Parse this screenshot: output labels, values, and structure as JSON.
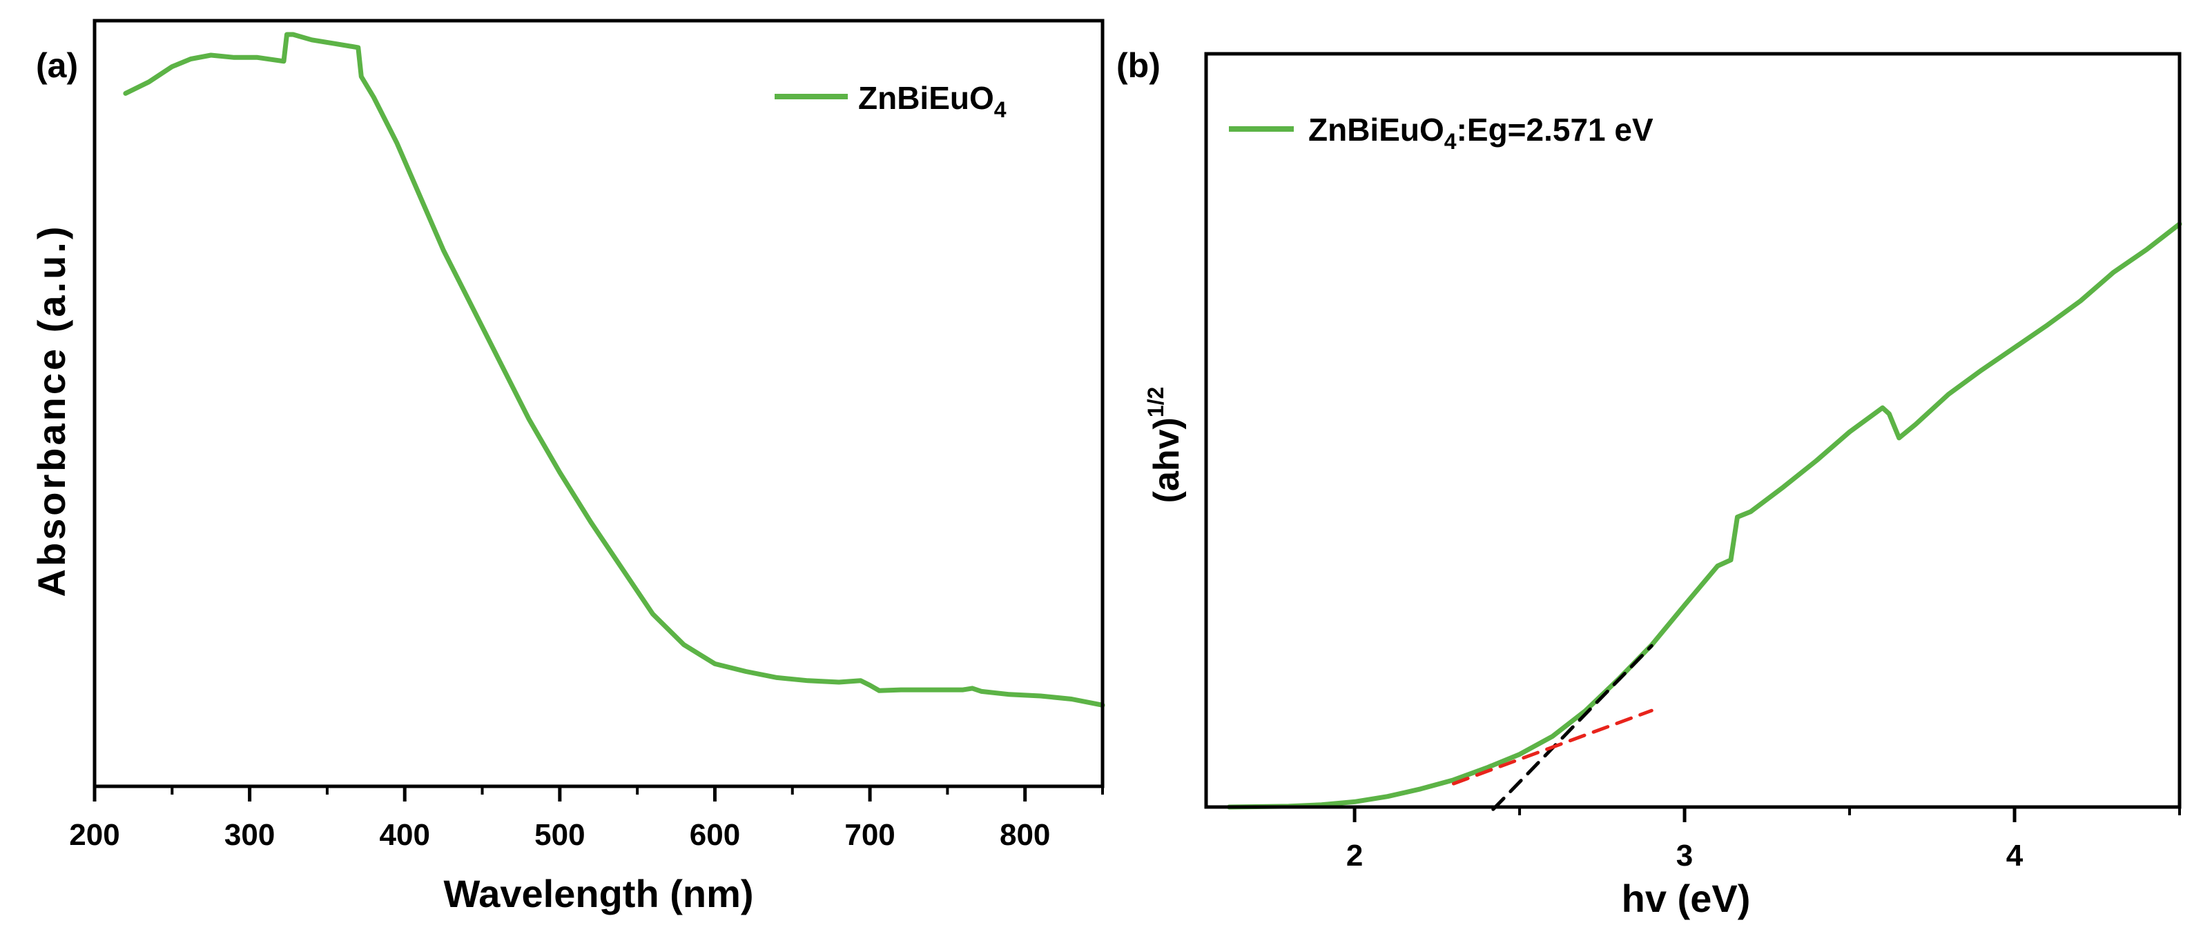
{
  "chart_data": [
    {
      "type": "line",
      "panel_label": "(a)",
      "title": "",
      "xlabel": "Wavelength (nm)",
      "ylabel": "Absorbance (a.u.)",
      "xlim": [
        200,
        850
      ],
      "ylim": [
        0,
        1
      ],
      "xticks": [
        200,
        300,
        400,
        500,
        600,
        700,
        800
      ],
      "xtick_labels": [
        "200",
        "300",
        "400",
        "500",
        "600",
        "700",
        "800"
      ],
      "yticks_shown": false,
      "legend": {
        "position": "top-right",
        "entries": [
          {
            "base": "ZnBiEuO",
            "sub": "4"
          }
        ]
      },
      "series": [
        {
          "name": "ZnBiEuO4",
          "color": "#5cb346",
          "x": [
            220,
            235,
            250,
            262,
            275,
            290,
            305,
            322,
            324,
            328,
            340,
            355,
            370,
            372,
            380,
            395,
            410,
            425,
            440,
            460,
            480,
            500,
            520,
            540,
            560,
            580,
            600,
            620,
            640,
            660,
            680,
            694,
            700,
            706,
            720,
            740,
            760,
            766,
            772,
            790,
            810,
            830,
            850
          ],
          "y": [
            0.905,
            0.92,
            0.94,
            0.95,
            0.955,
            0.952,
            0.952,
            0.947,
            0.982,
            0.982,
            0.975,
            0.97,
            0.965,
            0.927,
            0.9,
            0.84,
            0.77,
            0.7,
            0.64,
            0.56,
            0.48,
            0.41,
            0.345,
            0.285,
            0.225,
            0.185,
            0.16,
            0.15,
            0.142,
            0.138,
            0.136,
            0.138,
            0.132,
            0.125,
            0.126,
            0.126,
            0.126,
            0.128,
            0.124,
            0.12,
            0.118,
            0.114,
            0.106
          ]
        }
      ]
    },
    {
      "type": "line",
      "panel_label": "(b)",
      "title": "",
      "xlabel": "hv (eV)",
      "ylabel": "(ahv)",
      "ylabel_sup": "1/2",
      "xlim": [
        1.55,
        4.5
      ],
      "ylim": [
        0,
        1
      ],
      "xticks": [
        2,
        3,
        4
      ],
      "xtick_labels": [
        "2",
        "3",
        "4"
      ],
      "yticks_shown": false,
      "legend": {
        "position": "top-left",
        "entries": [
          {
            "base": "ZnBiEuO",
            "sub": "4",
            "suffix": ":Eg=2.571 eV"
          }
        ]
      },
      "series": [
        {
          "name": "ZnBiEuO4:Eg=2.571 eV",
          "color": "#5cb346",
          "x": [
            1.62,
            1.8,
            1.9,
            2.0,
            2.1,
            2.2,
            2.3,
            2.4,
            2.5,
            2.6,
            2.7,
            2.8,
            2.9,
            3.0,
            3.1,
            3.14,
            3.16,
            3.2,
            3.3,
            3.4,
            3.5,
            3.6,
            3.62,
            3.65,
            3.7,
            3.8,
            3.9,
            4.0,
            4.1,
            4.2,
            4.3,
            4.4,
            4.5
          ],
          "y": [
            0.0,
            0.001,
            0.003,
            0.007,
            0.014,
            0.024,
            0.036,
            0.052,
            0.07,
            0.094,
            0.128,
            0.17,
            0.215,
            0.268,
            0.32,
            0.328,
            0.385,
            0.392,
            0.425,
            0.46,
            0.498,
            0.53,
            0.522,
            0.49,
            0.508,
            0.548,
            0.58,
            0.61,
            0.64,
            0.672,
            0.71,
            0.74,
            0.774
          ]
        },
        {
          "name": "tangent",
          "color": "#000000",
          "dashed": true,
          "x": [
            2.42,
            2.9
          ],
          "y": [
            -0.003,
            0.214
          ]
        },
        {
          "name": "baseline",
          "color": "#e8231b",
          "dashed": true,
          "x": [
            2.3,
            2.9
          ],
          "y": [
            0.031,
            0.128
          ]
        }
      ]
    }
  ]
}
